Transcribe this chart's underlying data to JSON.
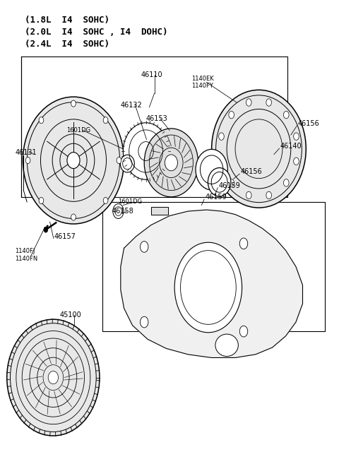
{
  "bg_color": "#ffffff",
  "line_color": "#000000",
  "text_color": "#000000",
  "header_lines": [
    "(1.8L  I4  SOHC)",
    "(2.0L  I4  SOHC , I4  DOHC)",
    "(2.4L  I4  SOHC)"
  ],
  "figsize": [
    4.8,
    6.57
  ],
  "dpi": 100
}
